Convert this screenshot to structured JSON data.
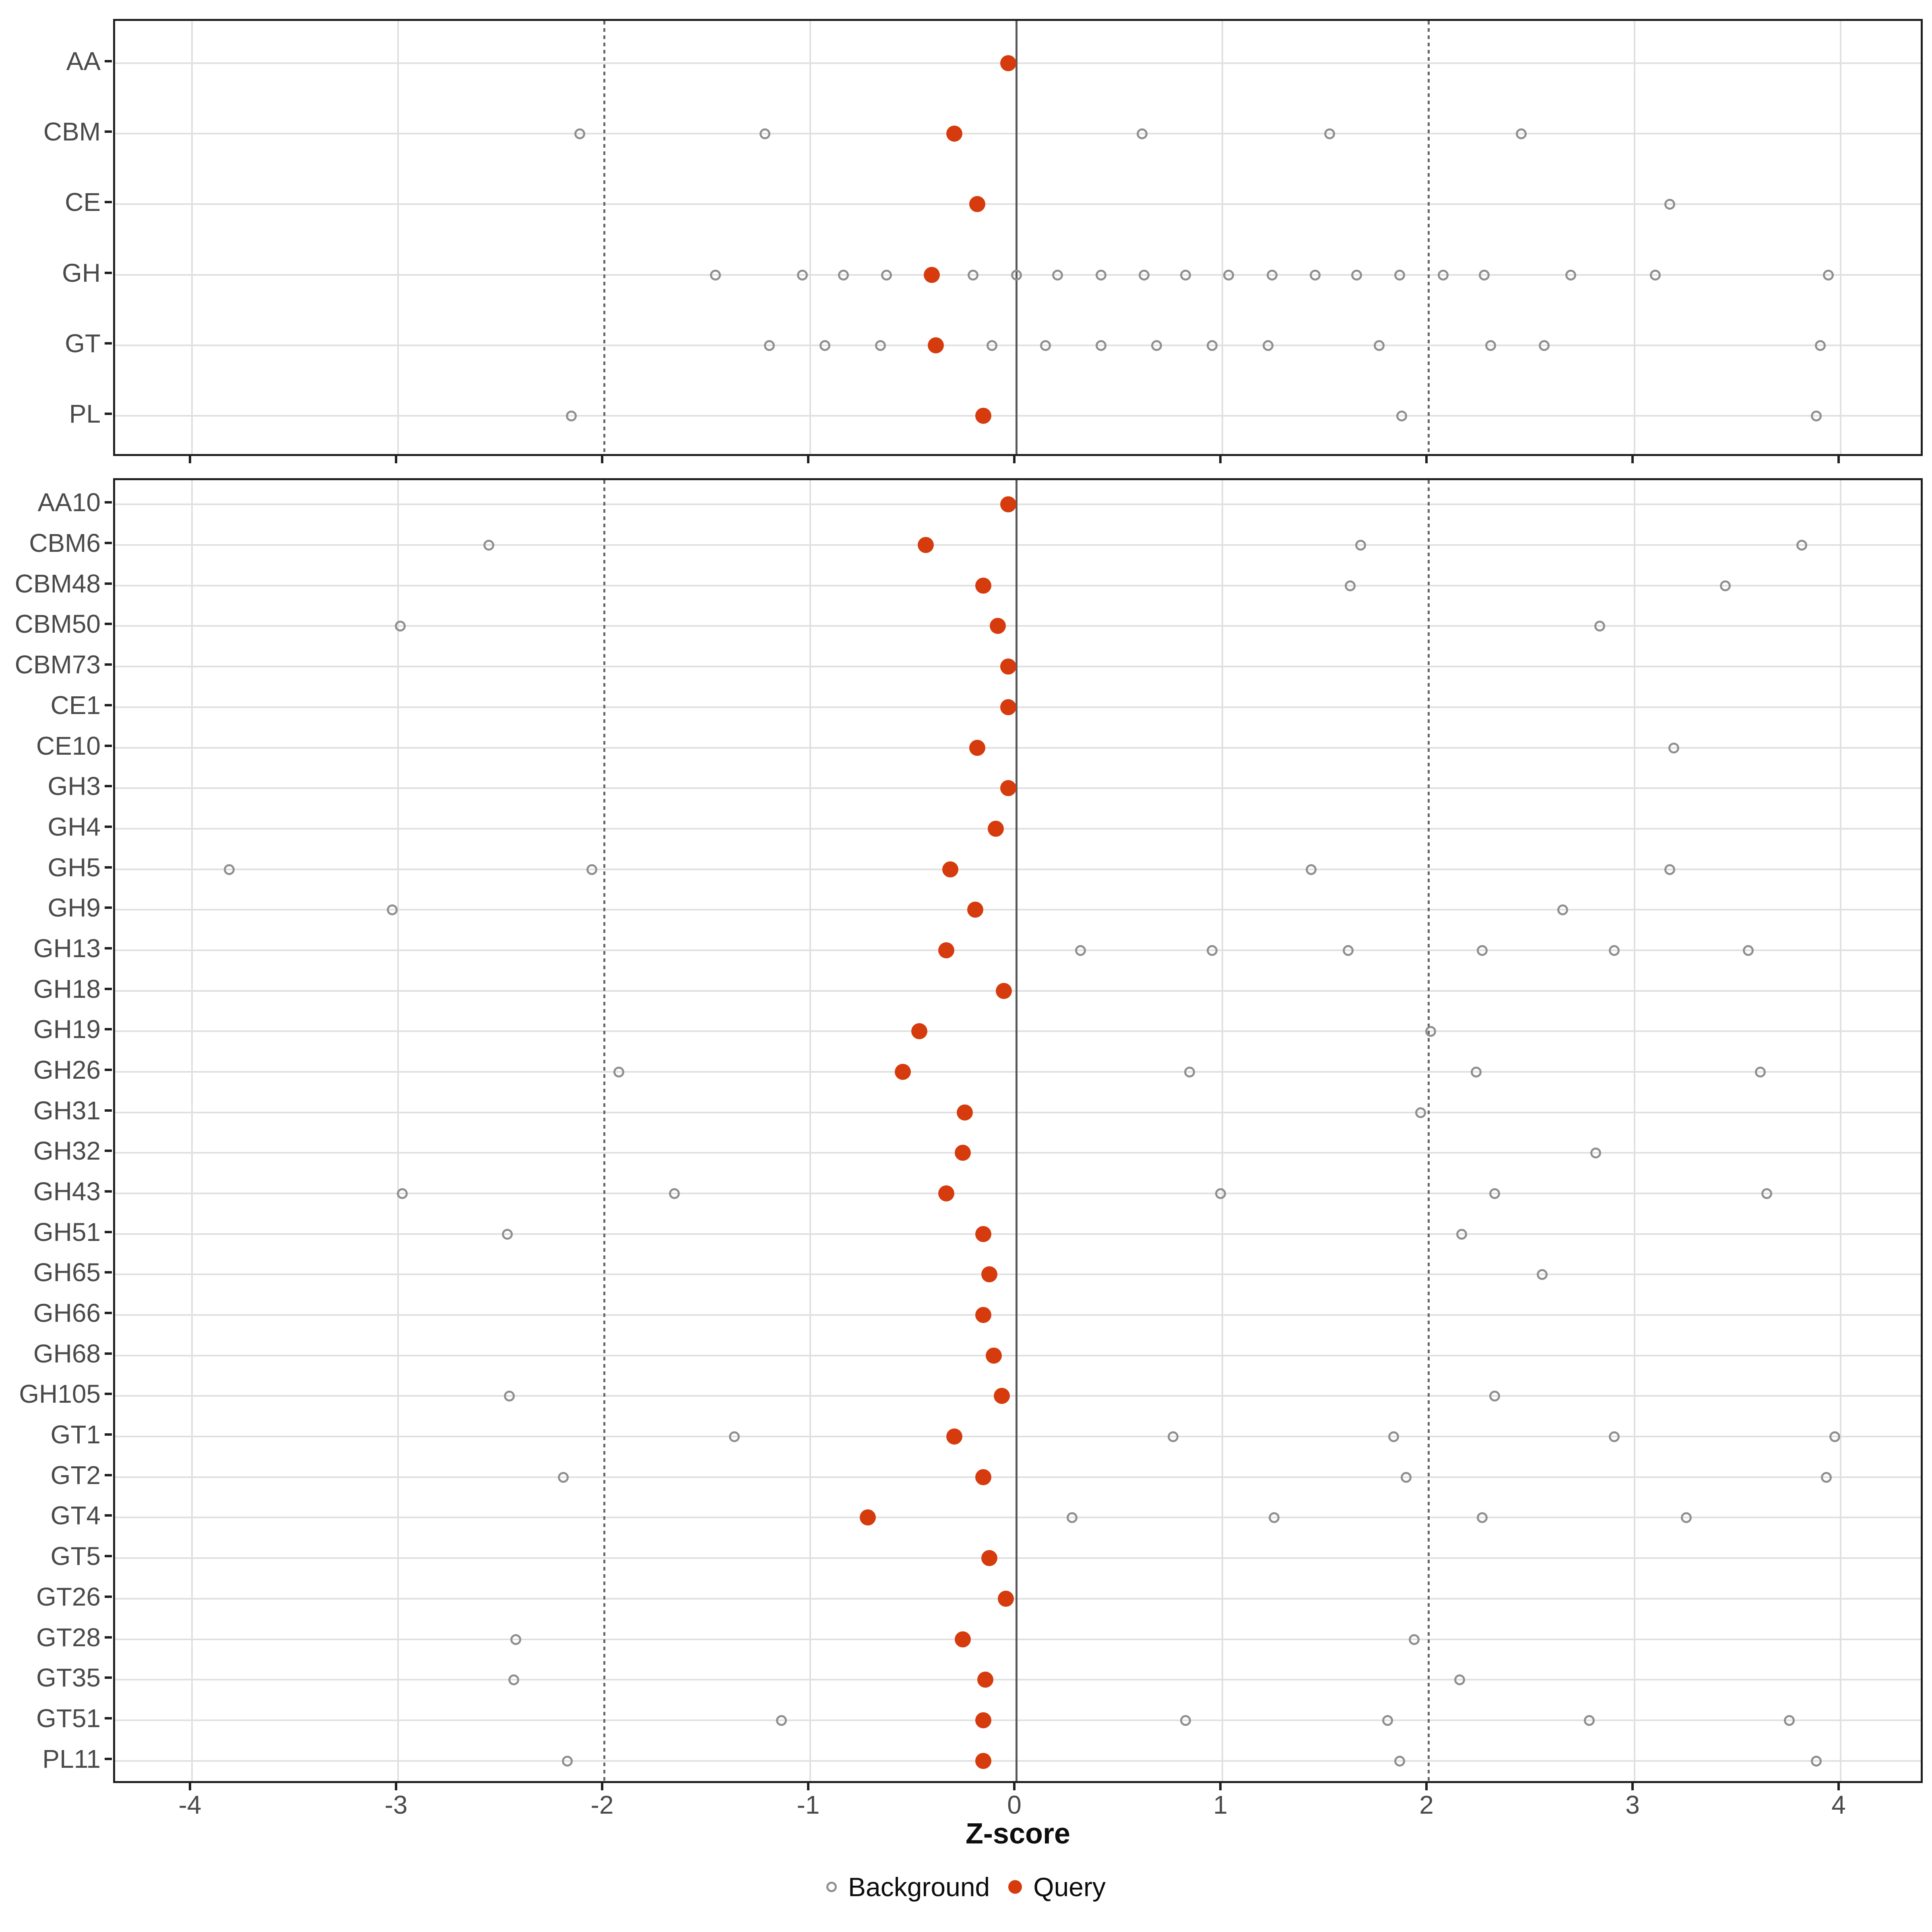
{
  "chart_data": {
    "type": "scatter",
    "subtype": "dot-strip-plot",
    "title": "",
    "xlabel": "Z-score",
    "ylabel": "",
    "xlim": [
      -4.4,
      4.4
    ],
    "x_ticks": [
      -4,
      -3,
      -2,
      -1,
      0,
      1,
      2,
      3,
      4
    ],
    "grid": "major-only",
    "reference_lines": {
      "solid": [
        0
      ],
      "dotted": [
        -2,
        2
      ]
    },
    "legend": {
      "position": "bottom-center",
      "items": [
        {
          "label": "Background",
          "marker": "open-circle",
          "color": "#8f8f8f"
        },
        {
          "label": "Query",
          "marker": "filled-circle",
          "color": "#d63b0e"
        }
      ]
    },
    "panels": [
      {
        "id": "families",
        "rows": [
          {
            "label": "AA",
            "query": -0.04,
            "background": []
          },
          {
            "label": "CBM",
            "query": -0.3,
            "background": [
              -2.12,
              -1.22,
              0.61,
              1.52,
              2.45
            ]
          },
          {
            "label": "CE",
            "query": -0.19,
            "background": [
              3.17
            ]
          },
          {
            "label": "GH",
            "query": -0.41,
            "background": [
              -1.46,
              -1.04,
              -0.84,
              -0.63,
              -0.21,
              0.0,
              0.2,
              0.41,
              0.62,
              0.82,
              1.03,
              1.24,
              1.45,
              1.65,
              1.86,
              2.07,
              2.27,
              2.69,
              3.1,
              3.94
            ]
          },
          {
            "label": "GT",
            "query": -0.39,
            "background": [
              -1.2,
              -0.93,
              -0.66,
              -0.12,
              0.14,
              0.41,
              0.68,
              0.95,
              1.22,
              1.76,
              2.3,
              2.56,
              3.9
            ]
          },
          {
            "label": "PL",
            "query": -0.16,
            "background": [
              -2.16,
              1.87,
              3.88
            ]
          }
        ]
      },
      {
        "id": "subfamilies",
        "rows": [
          {
            "label": "AA10",
            "query": -0.04,
            "background": []
          },
          {
            "label": "CBM6",
            "query": -0.44,
            "background": [
              -2.56,
              1.67,
              3.81
            ]
          },
          {
            "label": "CBM48",
            "query": -0.16,
            "background": [
              1.62,
              3.44
            ]
          },
          {
            "label": "CBM50",
            "query": -0.09,
            "background": [
              -2.99,
              2.83
            ]
          },
          {
            "label": "CBM73",
            "query": -0.04,
            "background": []
          },
          {
            "label": "CE1",
            "query": -0.04,
            "background": []
          },
          {
            "label": "CE10",
            "query": -0.19,
            "background": [
              3.19
            ]
          },
          {
            "label": "GH3",
            "query": -0.04,
            "background": []
          },
          {
            "label": "GH4",
            "query": -0.1,
            "background": []
          },
          {
            "label": "GH5",
            "query": -0.32,
            "background": [
              -3.82,
              -2.06,
              1.43,
              3.17
            ]
          },
          {
            "label": "GH9",
            "query": -0.2,
            "background": [
              -3.03,
              2.65
            ]
          },
          {
            "label": "GH13",
            "query": -0.34,
            "background": [
              0.31,
              0.95,
              1.61,
              2.26,
              2.9,
              3.55
            ]
          },
          {
            "label": "GH18",
            "query": -0.06,
            "background": []
          },
          {
            "label": "GH19",
            "query": -0.47,
            "background": [
              2.01
            ]
          },
          {
            "label": "GH26",
            "query": -0.55,
            "background": [
              -1.93,
              0.84,
              2.23,
              3.61
            ]
          },
          {
            "label": "GH31",
            "query": -0.25,
            "background": [
              1.96
            ]
          },
          {
            "label": "GH32",
            "query": -0.26,
            "background": [
              2.81
            ]
          },
          {
            "label": "GH43",
            "query": -0.34,
            "background": [
              -2.98,
              -1.66,
              0.99,
              2.32,
              3.64
            ]
          },
          {
            "label": "GH51",
            "query": -0.16,
            "background": [
              -2.47,
              2.16
            ]
          },
          {
            "label": "GH65",
            "query": -0.13,
            "background": [
              2.55
            ]
          },
          {
            "label": "GH66",
            "query": -0.16,
            "background": []
          },
          {
            "label": "GH68",
            "query": -0.11,
            "background": []
          },
          {
            "label": "GH105",
            "query": -0.07,
            "background": [
              -2.46,
              2.32
            ]
          },
          {
            "label": "GT1",
            "query": -0.3,
            "background": [
              -1.37,
              0.76,
              1.83,
              2.9,
              3.97
            ]
          },
          {
            "label": "GT2",
            "query": -0.16,
            "background": [
              -2.2,
              1.89,
              3.93
            ]
          },
          {
            "label": "GT4",
            "query": -0.72,
            "background": [
              0.27,
              1.25,
              2.26,
              3.25
            ]
          },
          {
            "label": "GT5",
            "query": -0.13,
            "background": []
          },
          {
            "label": "GT26",
            "query": -0.05,
            "background": []
          },
          {
            "label": "GT28",
            "query": -0.26,
            "background": [
              -2.43,
              1.93
            ]
          },
          {
            "label": "GT35",
            "query": -0.15,
            "background": [
              -2.44,
              2.15
            ]
          },
          {
            "label": "GT51",
            "query": -0.16,
            "background": [
              -1.14,
              0.82,
              1.8,
              2.78,
              3.75
            ]
          },
          {
            "label": "PL11",
            "query": -0.16,
            "background": [
              -2.18,
              1.86,
              3.88
            ]
          }
        ]
      }
    ]
  },
  "colors": {
    "query": "#d63b0e",
    "background_stroke": "#8f8f8f",
    "grid": "#e0e0e0",
    "zero_line": "#595959",
    "dotted_line": "#666666",
    "panel_border": "#1f1f1f",
    "axis_text": "#4a4a4a",
    "title_text": "#0d0d0d"
  }
}
